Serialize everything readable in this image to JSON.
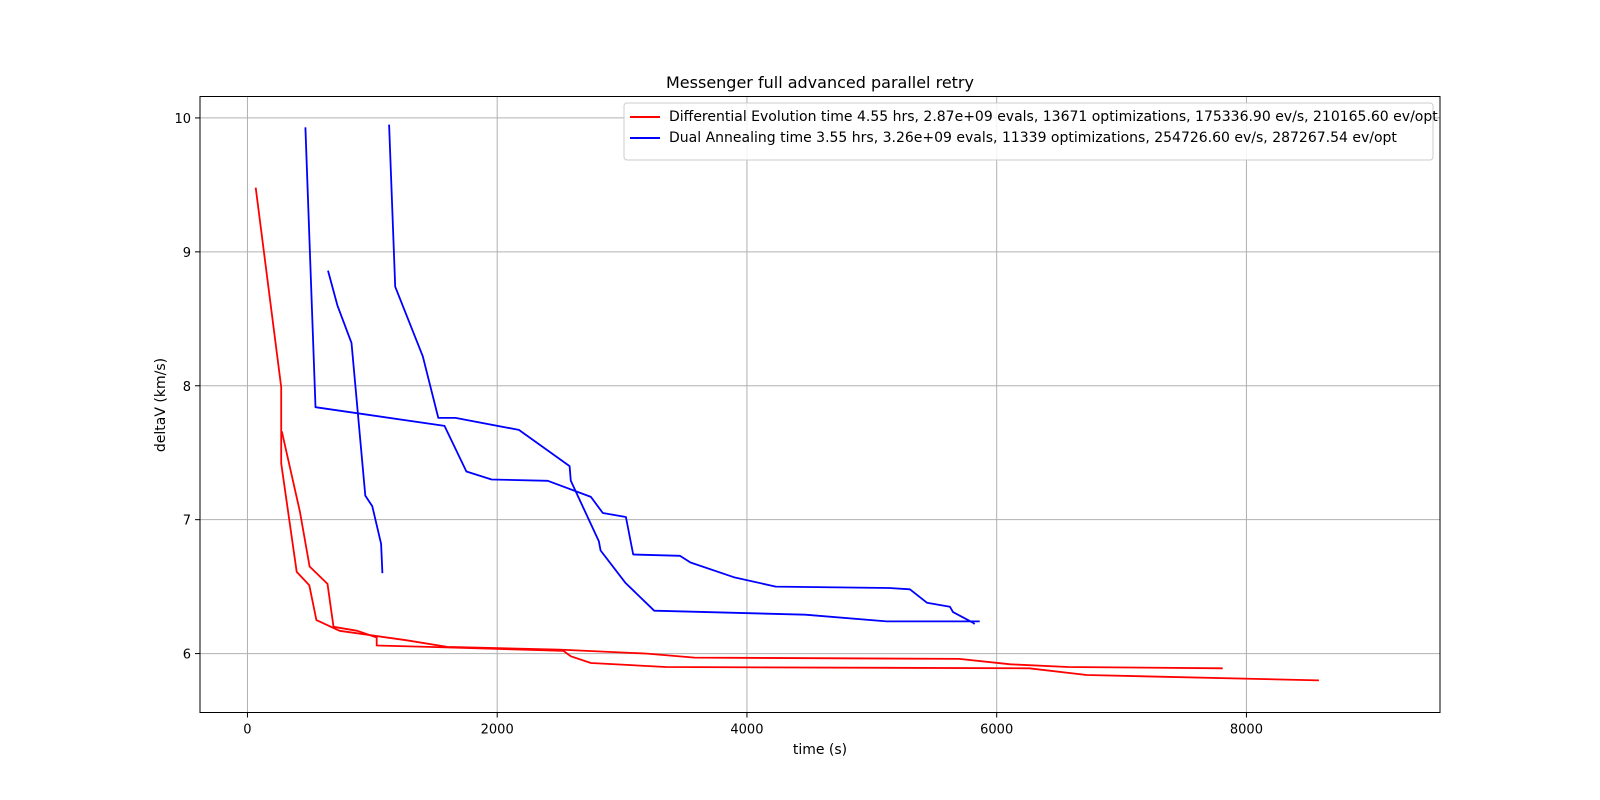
{
  "chart_data": {
    "type": "line",
    "title": "Messenger full advanced parallel retry",
    "xlabel": "time (s)",
    "ylabel": "deltaV (km/s)",
    "xlim": [
      -380,
      9550
    ],
    "ylim": [
      5.56,
      10.16
    ],
    "xticks": [
      0,
      2000,
      4000,
      6000,
      8000
    ],
    "yticks": [
      6,
      7,
      8,
      9,
      10
    ],
    "grid": true,
    "legend_position": "top-right",
    "series": [
      {
        "name": "Differential Evolution time 4.55 hrs, 2.87e+09 evals, 13671 optimizations, 175336.90 ev/s, 210165.60 ev/opt",
        "color": "#ff0000",
        "lines": [
          [
            [
              66,
              9.48
            ],
            [
              270,
              7.99
            ],
            [
              270,
              7.42
            ],
            [
              394,
              6.61
            ],
            [
              495,
              6.51
            ],
            [
              552,
              6.25
            ],
            [
              738,
              6.17
            ],
            [
              1270,
              6.1
            ],
            [
              1600,
              6.05
            ],
            [
              2500,
              6.03
            ],
            [
              3200,
              6.0
            ],
            [
              3580,
              5.97
            ],
            [
              5700,
              5.96
            ],
            [
              6110,
              5.92
            ],
            [
              6570,
              5.9
            ],
            [
              7810,
              5.89
            ]
          ],
          [
            [
              275,
              7.66
            ],
            [
              420,
              7.06
            ],
            [
              498,
              6.65
            ],
            [
              641,
              6.52
            ],
            [
              689,
              6.2
            ],
            [
              880,
              6.17
            ],
            [
              1035,
              6.12
            ],
            [
              1035,
              6.06
            ],
            [
              1450,
              6.05
            ],
            [
              2530,
              6.02
            ],
            [
              2590,
              5.98
            ],
            [
              2750,
              5.93
            ],
            [
              3350,
              5.9
            ],
            [
              6260,
              5.89
            ],
            [
              6720,
              5.84
            ],
            [
              8580,
              5.8
            ]
          ]
        ]
      },
      {
        "name": "Dual Annealing time 3.55 hrs, 3.26e+09 evals, 11339 optimizations, 254726.60 ev/s, 287267.54 ev/opt",
        "color": "#0000ff",
        "lines": [
          [
            [
              464,
              9.93
            ],
            [
              545,
              7.84
            ],
            [
              1578,
              7.7
            ],
            [
              1753,
              7.36
            ],
            [
              1955,
              7.3
            ],
            [
              2405,
              7.29
            ],
            [
              2750,
              7.17
            ],
            [
              2846,
              7.05
            ],
            [
              3031,
              7.02
            ],
            [
              3089,
              6.74
            ],
            [
              3463,
              6.73
            ],
            [
              3548,
              6.68
            ],
            [
              3895,
              6.57
            ],
            [
              4230,
              6.5
            ],
            [
              5138,
              6.49
            ],
            [
              5305,
              6.48
            ],
            [
              5441,
              6.38
            ],
            [
              5625,
              6.35
            ],
            [
              5650,
              6.31
            ],
            [
              5812,
              6.23
            ],
            [
              5823,
              6.22
            ]
          ],
          [
            [
              1134,
              9.95
            ],
            [
              1183,
              8.74
            ],
            [
              1404,
              8.22
            ],
            [
              1528,
              7.76
            ],
            [
              1665,
              7.76
            ],
            [
              2174,
              7.67
            ],
            [
              2580,
              7.4
            ],
            [
              2589,
              7.29
            ],
            [
              2814,
              6.84
            ],
            [
              2828,
              6.77
            ],
            [
              3025,
              6.53
            ],
            [
              3257,
              6.32
            ],
            [
              4467,
              6.29
            ],
            [
              5118,
              6.24
            ],
            [
              5864,
              6.24
            ]
          ],
          [
            [
              645,
              8.86
            ],
            [
              720,
              8.6
            ],
            [
              833,
              8.32
            ],
            [
              944,
              7.18
            ],
            [
              1000,
              7.1
            ],
            [
              1070,
              6.82
            ],
            [
              1081,
              6.6
            ]
          ]
        ]
      }
    ]
  }
}
